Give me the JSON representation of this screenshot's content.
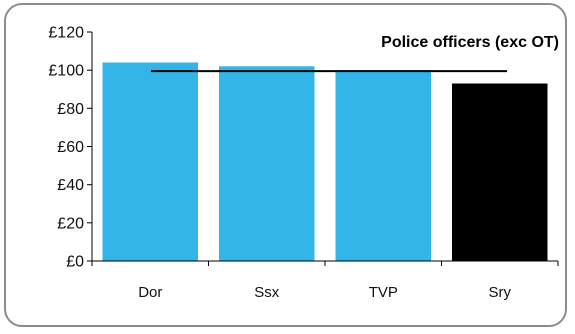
{
  "chart_data": {
    "type": "bar",
    "title": "Police officers (exc OT)",
    "xlabel": "",
    "ylabel": "",
    "categories": [
      "Dor",
      "Ssx",
      "TVP",
      "Sry"
    ],
    "values": [
      104,
      102,
      100,
      93
    ],
    "bar_colors": [
      "#33b5e8",
      "#33b5e8",
      "#33b5e8",
      "#000000"
    ],
    "reference_line": {
      "value": 99.5,
      "color": "#000000"
    },
    "ylim": [
      0,
      120
    ],
    "yticks": [
      0,
      20,
      40,
      60,
      80,
      100,
      120
    ],
    "ytick_labels": [
      "£0",
      "£20",
      "£40",
      "£60",
      "£80",
      "£100",
      "£120"
    ],
    "grid": false,
    "legend": "none"
  }
}
